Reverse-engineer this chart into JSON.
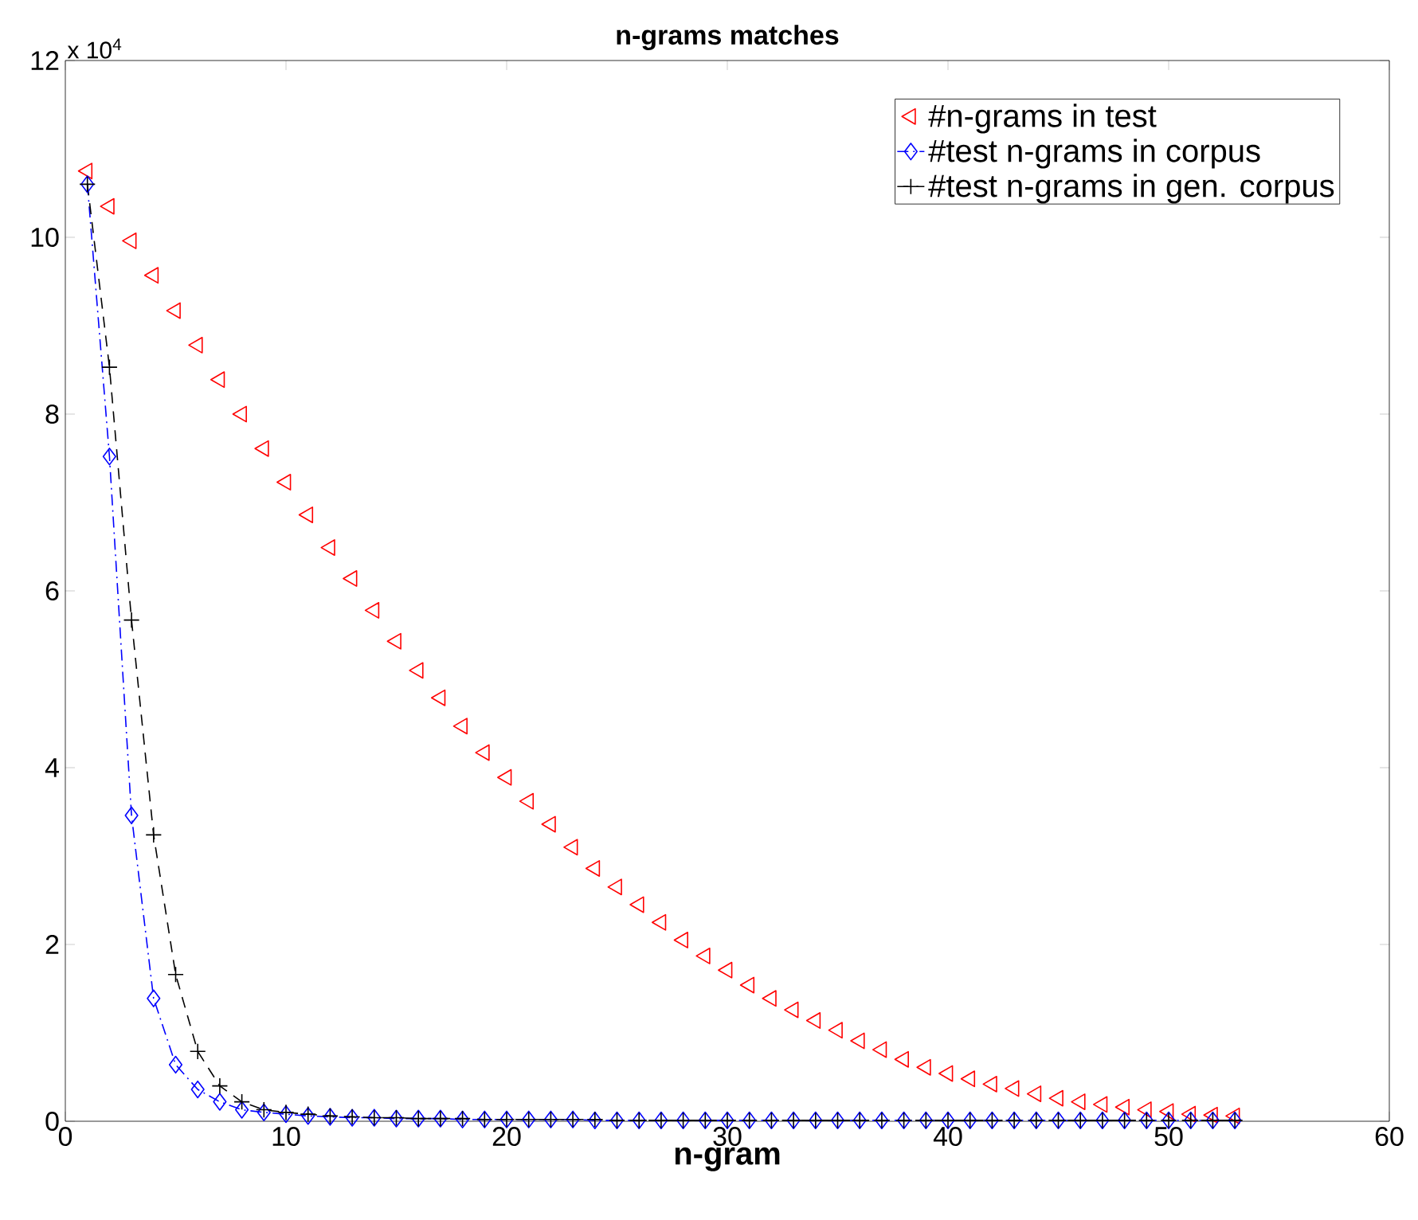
{
  "chart_data": {
    "type": "line",
    "title": "n-grams matches",
    "xlabel": "n-gram",
    "annotations": [
      "x 10$^{4}$"
    ],
    "x": [
      1,
      2,
      3,
      4,
      5,
      6,
      7,
      8,
      9,
      10,
      11,
      12,
      13,
      14,
      15,
      16,
      17,
      18,
      19,
      20,
      21,
      22,
      23,
      24,
      25,
      26,
      27,
      28,
      29,
      30,
      31,
      32,
      33,
      34,
      35,
      36,
      37,
      38,
      39,
      40,
      41,
      42,
      43,
      44,
      45,
      46,
      47,
      48,
      49,
      50,
      51,
      52,
      53
    ],
    "xlim": [
      0,
      60
    ],
    "xticks": [
      0,
      10,
      20,
      30,
      40,
      50,
      60
    ],
    "ylim": [
      0,
      12
    ],
    "yticks": [
      0,
      2,
      4,
      6,
      8,
      10,
      12
    ],
    "grid": false,
    "legend": "top right",
    "series": [
      {
        "name": "#n-grams in test",
        "type": "scatter",
        "color": "#ff0000",
        "marker": "triangle",
        "line_style": "none",
        "values": [
          10.75,
          10.35,
          9.96,
          9.57,
          9.17,
          8.78,
          8.39,
          8.0,
          7.61,
          7.23,
          6.86,
          6.49,
          6.14,
          5.78,
          5.43,
          5.1,
          4.79,
          4.47,
          4.17,
          3.89,
          3.62,
          3.36,
          3.1,
          2.86,
          2.65,
          2.45,
          2.25,
          2.05,
          1.87,
          1.71,
          1.54,
          1.39,
          1.26,
          1.14,
          1.03,
          0.91,
          0.81,
          0.7,
          0.61,
          0.54,
          0.48,
          0.42,
          0.37,
          0.31,
          0.26,
          0.22,
          0.19,
          0.16,
          0.13,
          0.11,
          0.08,
          0.07,
          0.06
        ]
      },
      {
        "name": "#test n-grams in corpus",
        "type": "line",
        "color": "#0000ff",
        "marker": "diamond",
        "line_style": "dashdot",
        "values": [
          10.6,
          7.52,
          3.46,
          1.39,
          0.64,
          0.36,
          0.22,
          0.13,
          0.1,
          0.08,
          0.06,
          0.05,
          0.04,
          0.04,
          0.03,
          0.03,
          0.03,
          0.02,
          0.02,
          0.02,
          0.02,
          0.02,
          0.02,
          0.01,
          0.01,
          0.01,
          0.01,
          0.01,
          0.01,
          0.01,
          0.01,
          0.01,
          0.01,
          0.01,
          0.01,
          0.01,
          0.01,
          0.01,
          0.01,
          0.01,
          0.01,
          0.01,
          0.01,
          0.01,
          0.01,
          0.01,
          0.01,
          0.01,
          0.01,
          0.01,
          0.01,
          0.01,
          0.01
        ]
      },
      {
        "name": "#test n-grams in gen. corpus",
        "type": "line",
        "color": "#000000",
        "marker": "cross",
        "line_style": "dashed",
        "values": [
          10.6,
          8.53,
          5.67,
          3.24,
          1.66,
          0.79,
          0.4,
          0.22,
          0.13,
          0.1,
          0.08,
          0.06,
          0.05,
          0.04,
          0.04,
          0.03,
          0.03,
          0.03,
          0.02,
          0.02,
          0.02,
          0.02,
          0.02,
          0.02,
          0.01,
          0.01,
          0.01,
          0.01,
          0.01,
          0.01,
          0.01,
          0.01,
          0.01,
          0.01,
          0.01,
          0.01,
          0.01,
          0.01,
          0.01,
          0.01,
          0.01,
          0.01,
          0.01,
          0.01,
          0.01,
          0.01,
          0.01,
          0.01,
          0.01,
          0.01,
          0.01,
          0.01,
          0.01
        ]
      }
    ]
  }
}
